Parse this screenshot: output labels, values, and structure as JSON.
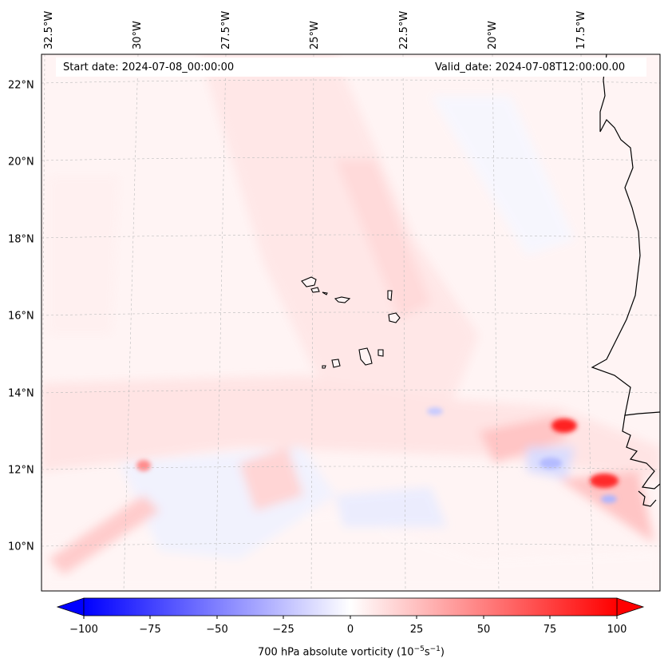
{
  "map": {
    "start_date_label": "Start date: 2024-07-08_00:00:00",
    "valid_date_label": "Valid_date: 2024-07-08T12:00:00.00",
    "lat_labels": [
      "22°N",
      "20°N",
      "18°N",
      "16°N",
      "14°N",
      "12°N",
      "10°N"
    ],
    "lon_labels": [
      "32.5°W",
      "30°W",
      "27.5°W",
      "25°W",
      "22.5°W",
      "20°W",
      "17.5°W"
    ]
  },
  "colorbar": {
    "label_main": "700 hPa absolute vorticity (10",
    "label_exp1": "−5",
    "label_mid": "s",
    "label_exp2": "−1",
    "label_end": ")",
    "ticks": [
      "−100",
      "−75",
      "−50",
      "−25",
      "0",
      "25",
      "50",
      "75",
      "100"
    ],
    "min_color": "#0000ff",
    "mid_color": "#ffffff",
    "max_color": "#ff0000"
  }
}
